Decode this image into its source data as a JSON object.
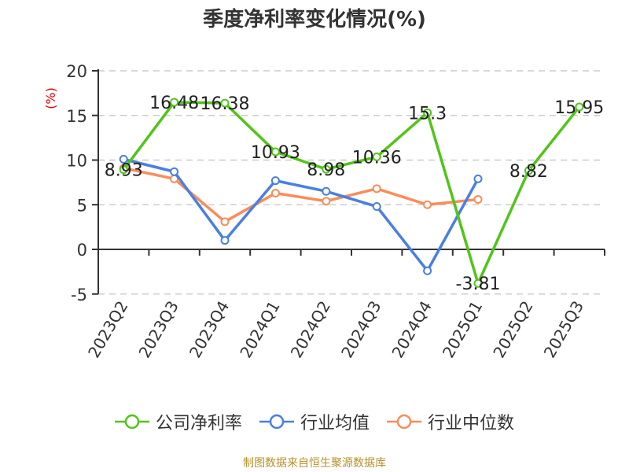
{
  "title": "季度净利率变化情况(%)",
  "y_unit": "(%)",
  "source": "制图数据来自恒生聚源数据库",
  "legend": [
    {
      "label": "公司净利率",
      "color": "#52c41a"
    },
    {
      "label": "行业均值",
      "color": "#4a7fe0"
    },
    {
      "label": "行业中位数",
      "color": "#fa8c5a"
    }
  ],
  "chart_data": {
    "type": "line",
    "title": "季度净利率变化情况(%)",
    "xlabel": "",
    "ylabel": "(%)",
    "ylim": [
      -5,
      20
    ],
    "yticks": [
      -5,
      0,
      5,
      10,
      15,
      20
    ],
    "grid": true,
    "legend_position": "bottom",
    "categories": [
      "2023Q2",
      "2023Q3",
      "2023Q4",
      "2024Q1",
      "2024Q2",
      "2024Q3",
      "2024Q4",
      "2025Q1",
      "2025Q2",
      "2025Q3"
    ],
    "series": [
      {
        "name": "公司净利率",
        "color": "#52c41a",
        "values": [
          8.93,
          16.48,
          16.38,
          10.93,
          8.98,
          10.36,
          15.3,
          -3.81,
          8.82,
          15.95
        ],
        "labels": [
          "8.93",
          "16.48",
          "16.38",
          "10.93",
          "8.98",
          "10.36",
          "15.3",
          "-3.81",
          "8.82",
          "15.95"
        ]
      },
      {
        "name": "行业均值",
        "color": "#4a7fe0",
        "values": [
          10.1,
          8.7,
          1.0,
          7.7,
          6.5,
          4.8,
          -2.4,
          7.9,
          null,
          null
        ]
      },
      {
        "name": "行业中位数",
        "color": "#fa8c5a",
        "values": [
          9.1,
          7.9,
          3.1,
          6.3,
          5.4,
          6.8,
          5.0,
          5.6,
          null,
          null
        ]
      }
    ]
  }
}
